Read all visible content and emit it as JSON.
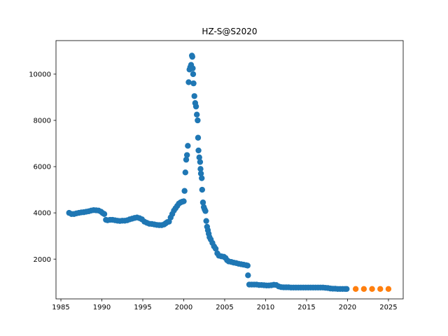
{
  "chart_data": {
    "type": "scatter",
    "title": "HZ-S@S2020",
    "xlabel": "",
    "ylabel": "",
    "xlim": [
      1984.4,
      2026.8
    ],
    "ylim": [
      280,
      11450
    ],
    "xticks": [
      1985,
      1990,
      1995,
      2000,
      2005,
      2010,
      2015,
      2020,
      2025
    ],
    "yticks": [
      2000,
      4000,
      6000,
      8000,
      10000
    ],
    "grid": false,
    "series": [
      {
        "color": "#1f77b4",
        "points": [
          [
            1986.0,
            4000
          ],
          [
            1986.3,
            3950
          ],
          [
            1986.6,
            3950
          ],
          [
            1986.9,
            3980
          ],
          [
            1987.2,
            4000
          ],
          [
            1987.5,
            4020
          ],
          [
            1987.8,
            4030
          ],
          [
            1988.1,
            4050
          ],
          [
            1988.4,
            4070
          ],
          [
            1988.7,
            4100
          ],
          [
            1989.0,
            4120
          ],
          [
            1989.3,
            4110
          ],
          [
            1989.6,
            4100
          ],
          [
            1989.9,
            4050
          ],
          [
            1990.1,
            3990
          ],
          [
            1990.3,
            3950
          ],
          [
            1990.5,
            3700
          ],
          [
            1990.7,
            3680
          ],
          [
            1991.0,
            3700
          ],
          [
            1991.3,
            3700
          ],
          [
            1991.6,
            3680
          ],
          [
            1991.9,
            3660
          ],
          [
            1992.2,
            3650
          ],
          [
            1992.5,
            3660
          ],
          [
            1992.8,
            3660
          ],
          [
            1993.1,
            3680
          ],
          [
            1993.4,
            3720
          ],
          [
            1993.7,
            3750
          ],
          [
            1994.0,
            3780
          ],
          [
            1994.3,
            3800
          ],
          [
            1994.6,
            3770
          ],
          [
            1994.9,
            3720
          ],
          [
            1995.2,
            3620
          ],
          [
            1995.5,
            3570
          ],
          [
            1995.8,
            3530
          ],
          [
            1996.1,
            3520
          ],
          [
            1996.4,
            3500
          ],
          [
            1996.7,
            3480
          ],
          [
            1997.0,
            3470
          ],
          [
            1997.3,
            3470
          ],
          [
            1997.6,
            3500
          ],
          [
            1997.8,
            3550
          ],
          [
            1998.0,
            3600
          ],
          [
            1998.2,
            3620
          ],
          [
            1998.4,
            3800
          ],
          [
            1998.6,
            3950
          ],
          [
            1998.8,
            4100
          ],
          [
            1999.0,
            4200
          ],
          [
            1999.2,
            4300
          ],
          [
            1999.4,
            4400
          ],
          [
            1999.6,
            4450
          ],
          [
            1999.8,
            4480
          ],
          [
            2000.0,
            4500
          ],
          [
            2000.1,
            4950
          ],
          [
            2000.2,
            5750
          ],
          [
            2000.3,
            6300
          ],
          [
            2000.4,
            6500
          ],
          [
            2000.5,
            6900
          ],
          [
            2000.6,
            9650
          ],
          [
            2000.7,
            10200
          ],
          [
            2000.8,
            10300
          ],
          [
            2000.9,
            10400
          ],
          [
            2001.0,
            10800
          ],
          [
            2001.05,
            10750
          ],
          [
            2001.1,
            10250
          ],
          [
            2001.15,
            10000
          ],
          [
            2001.2,
            9600
          ],
          [
            2001.3,
            9050
          ],
          [
            2001.4,
            8750
          ],
          [
            2001.5,
            8600
          ],
          [
            2001.6,
            8250
          ],
          [
            2001.7,
            8000
          ],
          [
            2001.75,
            7250
          ],
          [
            2001.8,
            6700
          ],
          [
            2001.9,
            6400
          ],
          [
            2002.0,
            6200
          ],
          [
            2002.05,
            5900
          ],
          [
            2002.1,
            5700
          ],
          [
            2002.2,
            5500
          ],
          [
            2002.25,
            5000
          ],
          [
            2002.35,
            4450
          ],
          [
            2002.45,
            4250
          ],
          [
            2002.55,
            4150
          ],
          [
            2002.65,
            4080
          ],
          [
            2002.75,
            3650
          ],
          [
            2002.85,
            3400
          ],
          [
            2002.95,
            3250
          ],
          [
            2003.05,
            3100
          ],
          [
            2003.15,
            2950
          ],
          [
            2003.3,
            2850
          ],
          [
            2003.5,
            2700
          ],
          [
            2003.7,
            2550
          ],
          [
            2003.9,
            2450
          ],
          [
            2004.1,
            2250
          ],
          [
            2004.3,
            2150
          ],
          [
            2004.6,
            2120
          ],
          [
            2004.9,
            2100
          ],
          [
            2005.1,
            2050
          ],
          [
            2005.3,
            1950
          ],
          [
            2005.5,
            1900
          ],
          [
            2005.8,
            1880
          ],
          [
            2006.1,
            1850
          ],
          [
            2006.4,
            1830
          ],
          [
            2006.7,
            1800
          ],
          [
            2007.0,
            1780
          ],
          [
            2007.3,
            1760
          ],
          [
            2007.6,
            1740
          ],
          [
            2007.8,
            1720
          ],
          [
            2007.85,
            1300
          ],
          [
            2008.0,
            900
          ],
          [
            2008.3,
            900
          ],
          [
            2008.6,
            900
          ],
          [
            2008.9,
            900
          ],
          [
            2009.2,
            880
          ],
          [
            2009.5,
            880
          ],
          [
            2009.8,
            870
          ],
          [
            2010.1,
            860
          ],
          [
            2010.4,
            860
          ],
          [
            2010.7,
            870
          ],
          [
            2011.0,
            890
          ],
          [
            2011.3,
            880
          ],
          [
            2011.6,
            820
          ],
          [
            2011.9,
            790
          ],
          [
            2012.2,
            780
          ],
          [
            2012.5,
            780
          ],
          [
            2012.8,
            780
          ],
          [
            2013.1,
            770
          ],
          [
            2013.4,
            770
          ],
          [
            2013.7,
            770
          ],
          [
            2014.0,
            770
          ],
          [
            2014.3,
            770
          ],
          [
            2014.6,
            770
          ],
          [
            2014.9,
            770
          ],
          [
            2015.2,
            770
          ],
          [
            2015.5,
            770
          ],
          [
            2015.8,
            770
          ],
          [
            2016.1,
            770
          ],
          [
            2016.4,
            770
          ],
          [
            2016.7,
            770
          ],
          [
            2017.0,
            770
          ],
          [
            2017.3,
            760
          ],
          [
            2017.6,
            750
          ],
          [
            2017.9,
            730
          ],
          [
            2018.2,
            720
          ],
          [
            2018.5,
            720
          ],
          [
            2018.8,
            710
          ],
          [
            2019.1,
            710
          ],
          [
            2019.4,
            710
          ],
          [
            2019.7,
            710
          ],
          [
            2019.9,
            710
          ]
        ]
      },
      {
        "color": "#ff7f0e",
        "points": [
          [
            2021,
            710
          ],
          [
            2022,
            710
          ],
          [
            2023,
            710
          ],
          [
            2024,
            710
          ],
          [
            2025,
            710
          ]
        ]
      }
    ]
  }
}
